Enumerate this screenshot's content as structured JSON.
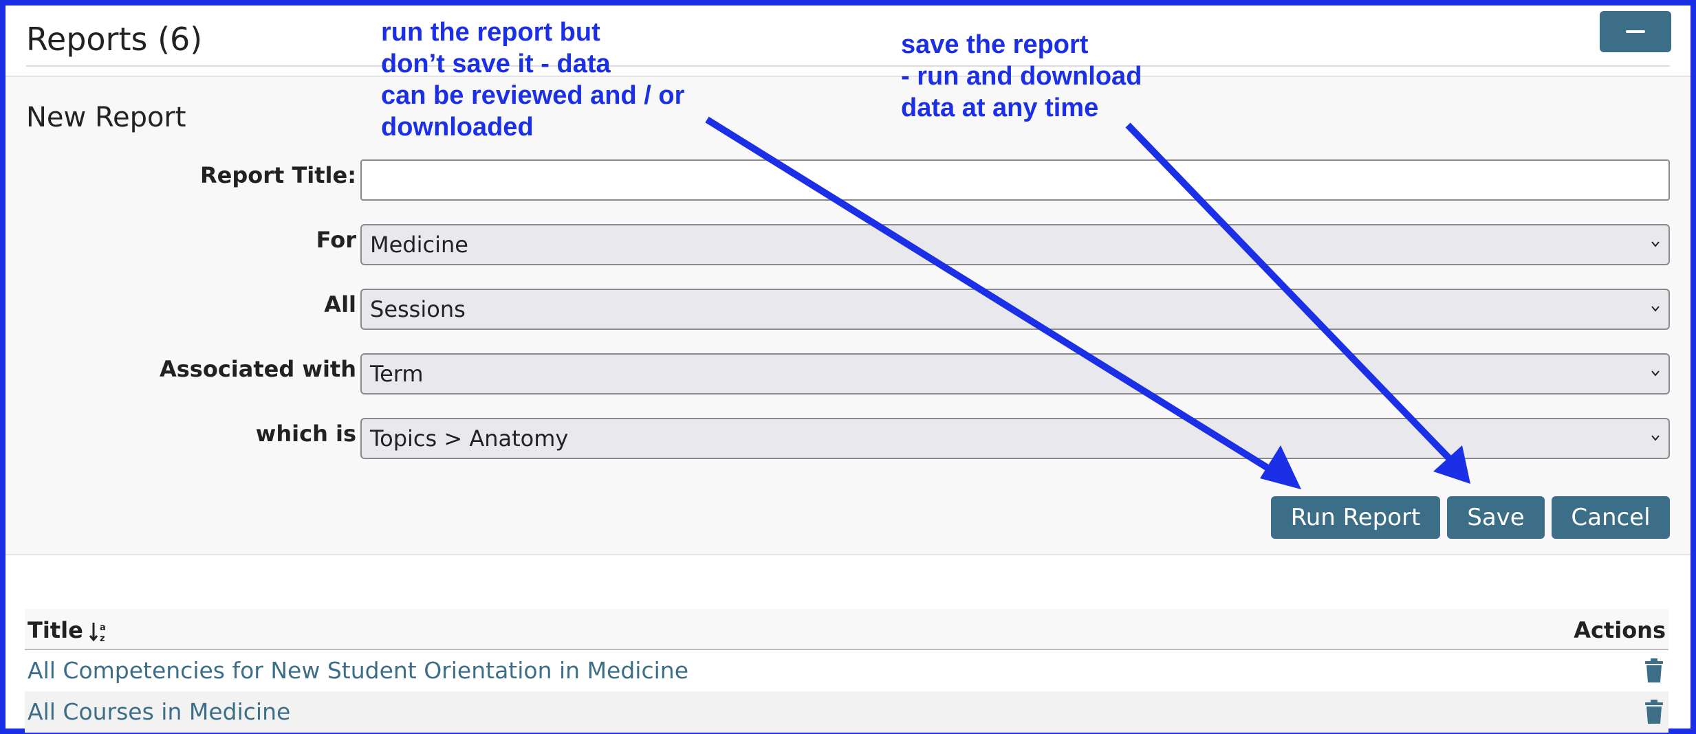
{
  "header": {
    "title": "Reports (6)",
    "collapse_icon": "minus-icon"
  },
  "new_report": {
    "section_title": "New Report",
    "fields": [
      {
        "label": "Report Title:",
        "type": "text",
        "value": ""
      },
      {
        "label": "For",
        "type": "select",
        "value": "Medicine"
      },
      {
        "label": "All",
        "type": "select",
        "value": "Sessions"
      },
      {
        "label": "Associated with",
        "type": "select",
        "value": "Term"
      },
      {
        "label": "which is",
        "type": "select",
        "value": "Topics > Anatomy"
      }
    ],
    "buttons": {
      "run_report": "Run Report",
      "save": "Save",
      "cancel": "Cancel"
    }
  },
  "table": {
    "col_title": "Title",
    "col_actions": "Actions",
    "sort_icon": "sort-alpha-down-icon",
    "rows": [
      {
        "title": "All Competencies for New Student Orientation in Medicine",
        "action_icon": "trash-icon"
      },
      {
        "title": "All Courses in Medicine",
        "action_icon": "trash-icon"
      }
    ]
  },
  "annotations": {
    "run_note": "run the report but\ndon’t save it - data\ncan be reviewed and / or\ndownloaded",
    "save_note": "save the report\n- run and download\ndata at any time"
  },
  "colors": {
    "frame": "#1b2fe6",
    "button": "#3c6f87",
    "link": "#3c6f87",
    "annotation": "#1b2fe6"
  }
}
